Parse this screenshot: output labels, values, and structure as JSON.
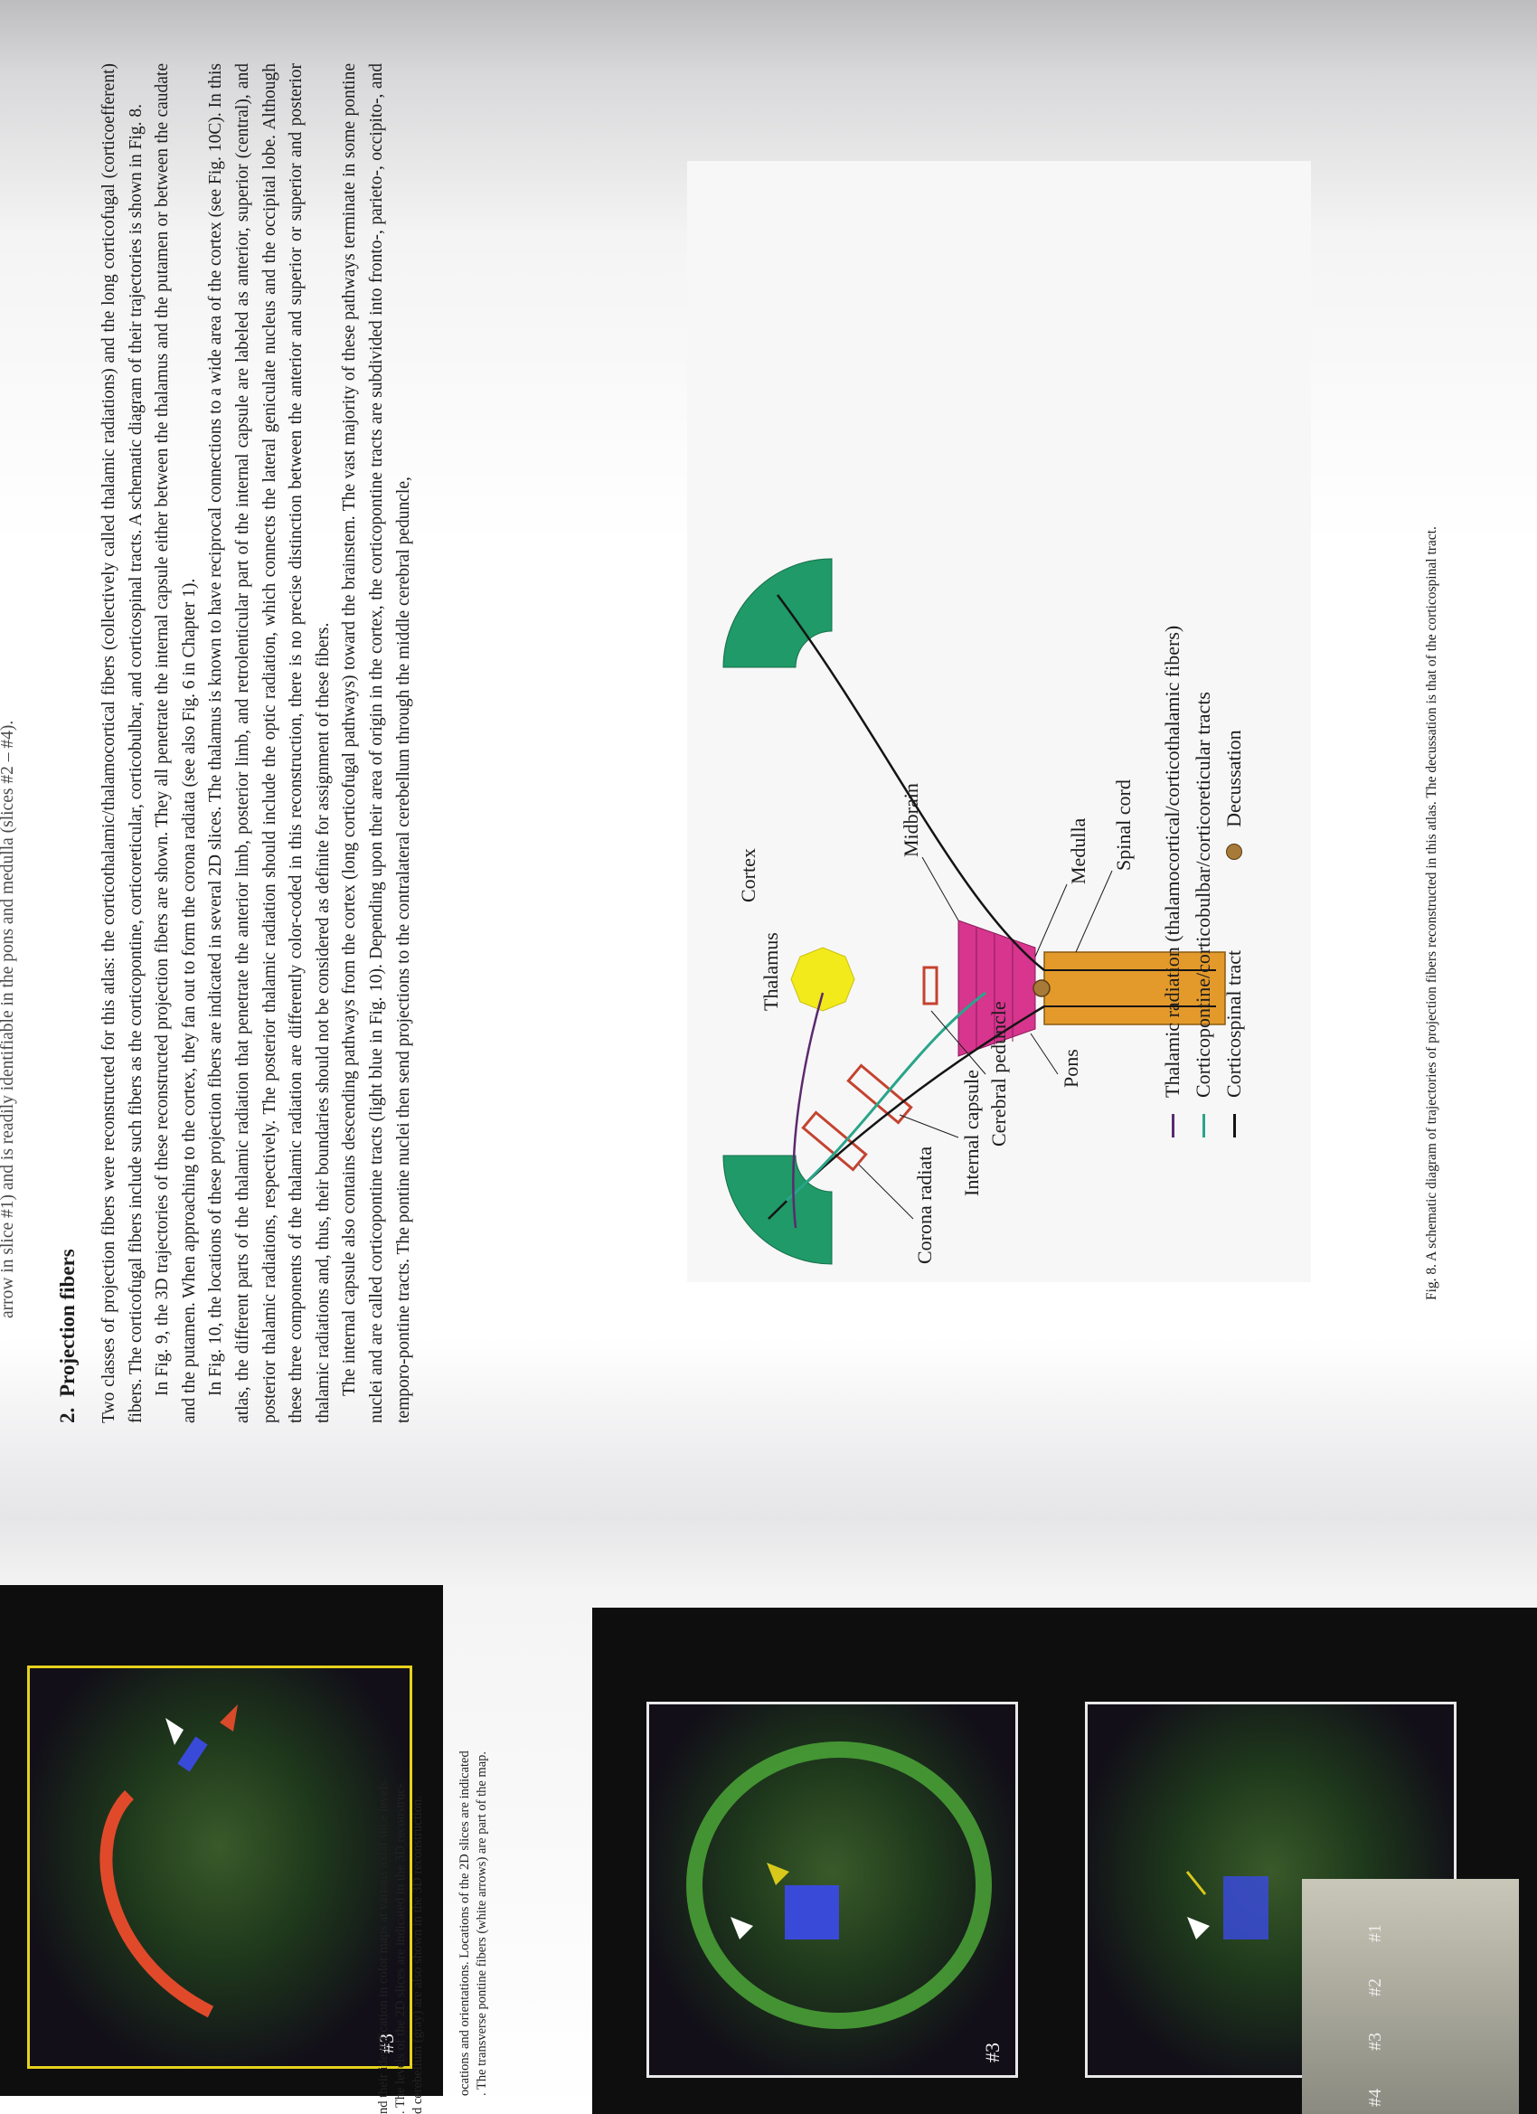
{
  "top_fragment": "arrow in slice #1) and is readily identifiable in the pons and medulla (slices #2 – #4).",
  "section": {
    "number": "2.",
    "title": "Projection fibers",
    "paragraphs": [
      "Two classes of projection fibers were reconstructed for this atlas: the corticothalamic/thalamocortical fibers (collectively called thalamic radiations) and the long corticofugal (corticoefferent) fibers. The corticofugal fibers include such fibers as the corticopontine, corticoreticular, corticobulbar, and corticospinal tracts. A schematic diagram of their trajectories is shown in Fig. 8.",
      "In Fig. 9, the 3D trajectories of these reconstructed projection fibers are shown. They all penetrate the internal capsule either between the thalamus and the putamen or between the caudate and the putamen. When approaching to the cortex, they fan out to form the corona radiata (see also Fig. 6 in Chapter 1).",
      "In Fig. 10, the locations of these projection fibers are indicated in several 2D slices. The thalamus is known to have reciprocal connections to a wide area of the cortex (see Fig. 10C). In this atlas, the different parts of the thalamic radiation that penetrate the anterior limb, posterior limb, and retrolenticular part of the internal capsule are labeled as anterior, superior (central), and posterior thalamic radiations, respectively. The posterior thalamic radiation should include the optic radiation, which connects the lateral geniculate nucleus and the occipital lobe. Although these three components of the thalamic radiation are differently color-coded in this reconstruction, there is no precise distinction between the anterior and superior or superior and posterior thalamic radiations and, thus, their boundaries should not be considered as definite for assignment of these fibers.",
      "The internal capsule also contains descending pathways from the cortex (long corticofugal pathways) toward the brainstem. The vast majority of these pathways terminate in some pontine nuclei and are called corticopontine tracts (light blue in Fig. 10). Depending upon their area of origin in the cortex, the corticopontine tracts are subdivided into fronto-, parieto-, occipito-, and temporo-pontine tracts. The pontine nuclei then send projections to the contralateral cerebellum through the middle cerebral peduncle,"
    ]
  },
  "diagram": {
    "labels": {
      "cortex": "Cortex",
      "thalamus": "Thalamus",
      "midbrain": "Midbrain",
      "medulla": "Medulla",
      "spinal_cord": "Spinal cord",
      "corona_radiata": "Corona radiata",
      "internal_capsule": "Internal capsule",
      "cerebral_peduncle": "Cerebral peduncle",
      "pons": "Pons"
    },
    "legend": [
      {
        "label": "Thalamic radiation (thalamocortical/corticothalamic fibers)",
        "color": "#5b2a6e"
      },
      {
        "label": "Corticopontine/corticobulbar/corticoreticular tracts",
        "color": "#2aa58a"
      },
      {
        "label": "Corticospinal tract",
        "color": "#141414"
      },
      {
        "label": "Decussation",
        "color": "#a87a3a"
      }
    ],
    "colors": {
      "cortex": "#1f9a68",
      "thalamus": "#f2ea1a",
      "midbrain": "#d7358e",
      "spinal_cord": "#e39a2b",
      "capsule_box": "#c4432f"
    }
  },
  "figure_caption": "Fig. 8.  A schematic diagram of trajectories of projection fibers reconstructed in this atlas. The decussation is that of the corticospinal tract.",
  "left_page": {
    "caption_upper": [
      "ocations and orientations. Locations of the 2D slices are indicated",
      ". The transverse pontine fibers (white arrows) are part of the map."
    ],
    "caption_lower": [
      "nd their identification in color maps at various axial slice levels.",
      ". The levels of the 2D slices are indicated in the 3D reconstruc-",
      "d cerebellum (gray) are also shown in the 3D reconstruction."
    ],
    "slice_labels": [
      "#3",
      "#3",
      "#4"
    ],
    "level_labels": [
      "#1",
      "#2",
      "#3",
      "#4"
    ]
  }
}
